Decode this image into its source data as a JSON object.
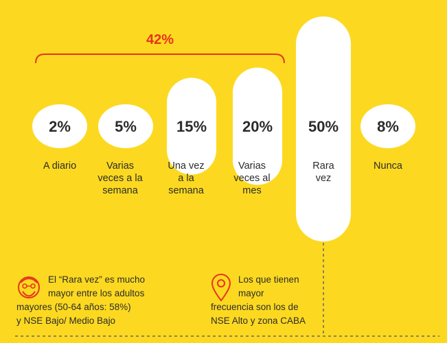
{
  "chart_data": {
    "type": "bar",
    "bracket_label": "42%",
    "bracket_covers": [
      "A diario",
      "Varias veces a la semana",
      "Una vez a la semana",
      "Varias veces al mes"
    ],
    "categories": [
      [
        "A diario"
      ],
      [
        "Varias",
        "veces a la",
        "semana"
      ],
      [
        "Una vez",
        "a la",
        "semana"
      ],
      [
        "Varias",
        "veces al",
        "mes"
      ],
      [
        "Rara",
        "vez"
      ],
      [
        "Nunca"
      ]
    ],
    "values": [
      2,
      5,
      15,
      20,
      50,
      8
    ],
    "value_labels": [
      "2%",
      "5%",
      "15%",
      "20%",
      "50%",
      "8%"
    ],
    "colors": {
      "background": "#FCD920",
      "pill": "#FFFFFF",
      "accent": "#E8331C",
      "text": "#2b2b2b"
    }
  },
  "callouts": {
    "left": {
      "icon": "elderly-face-icon",
      "lines": [
        "El “Rara vez” es mucho",
        "mayor entre los adultos",
        "mayores (50-64 años: 58%)",
        "y NSE Bajo/ Medio Bajo"
      ]
    },
    "right": {
      "icon": "location-pin-icon",
      "lines": [
        "Los que tienen",
        "mayor",
        "frecuencia  son los de",
        "NSE Alto y zona CABA"
      ]
    }
  }
}
